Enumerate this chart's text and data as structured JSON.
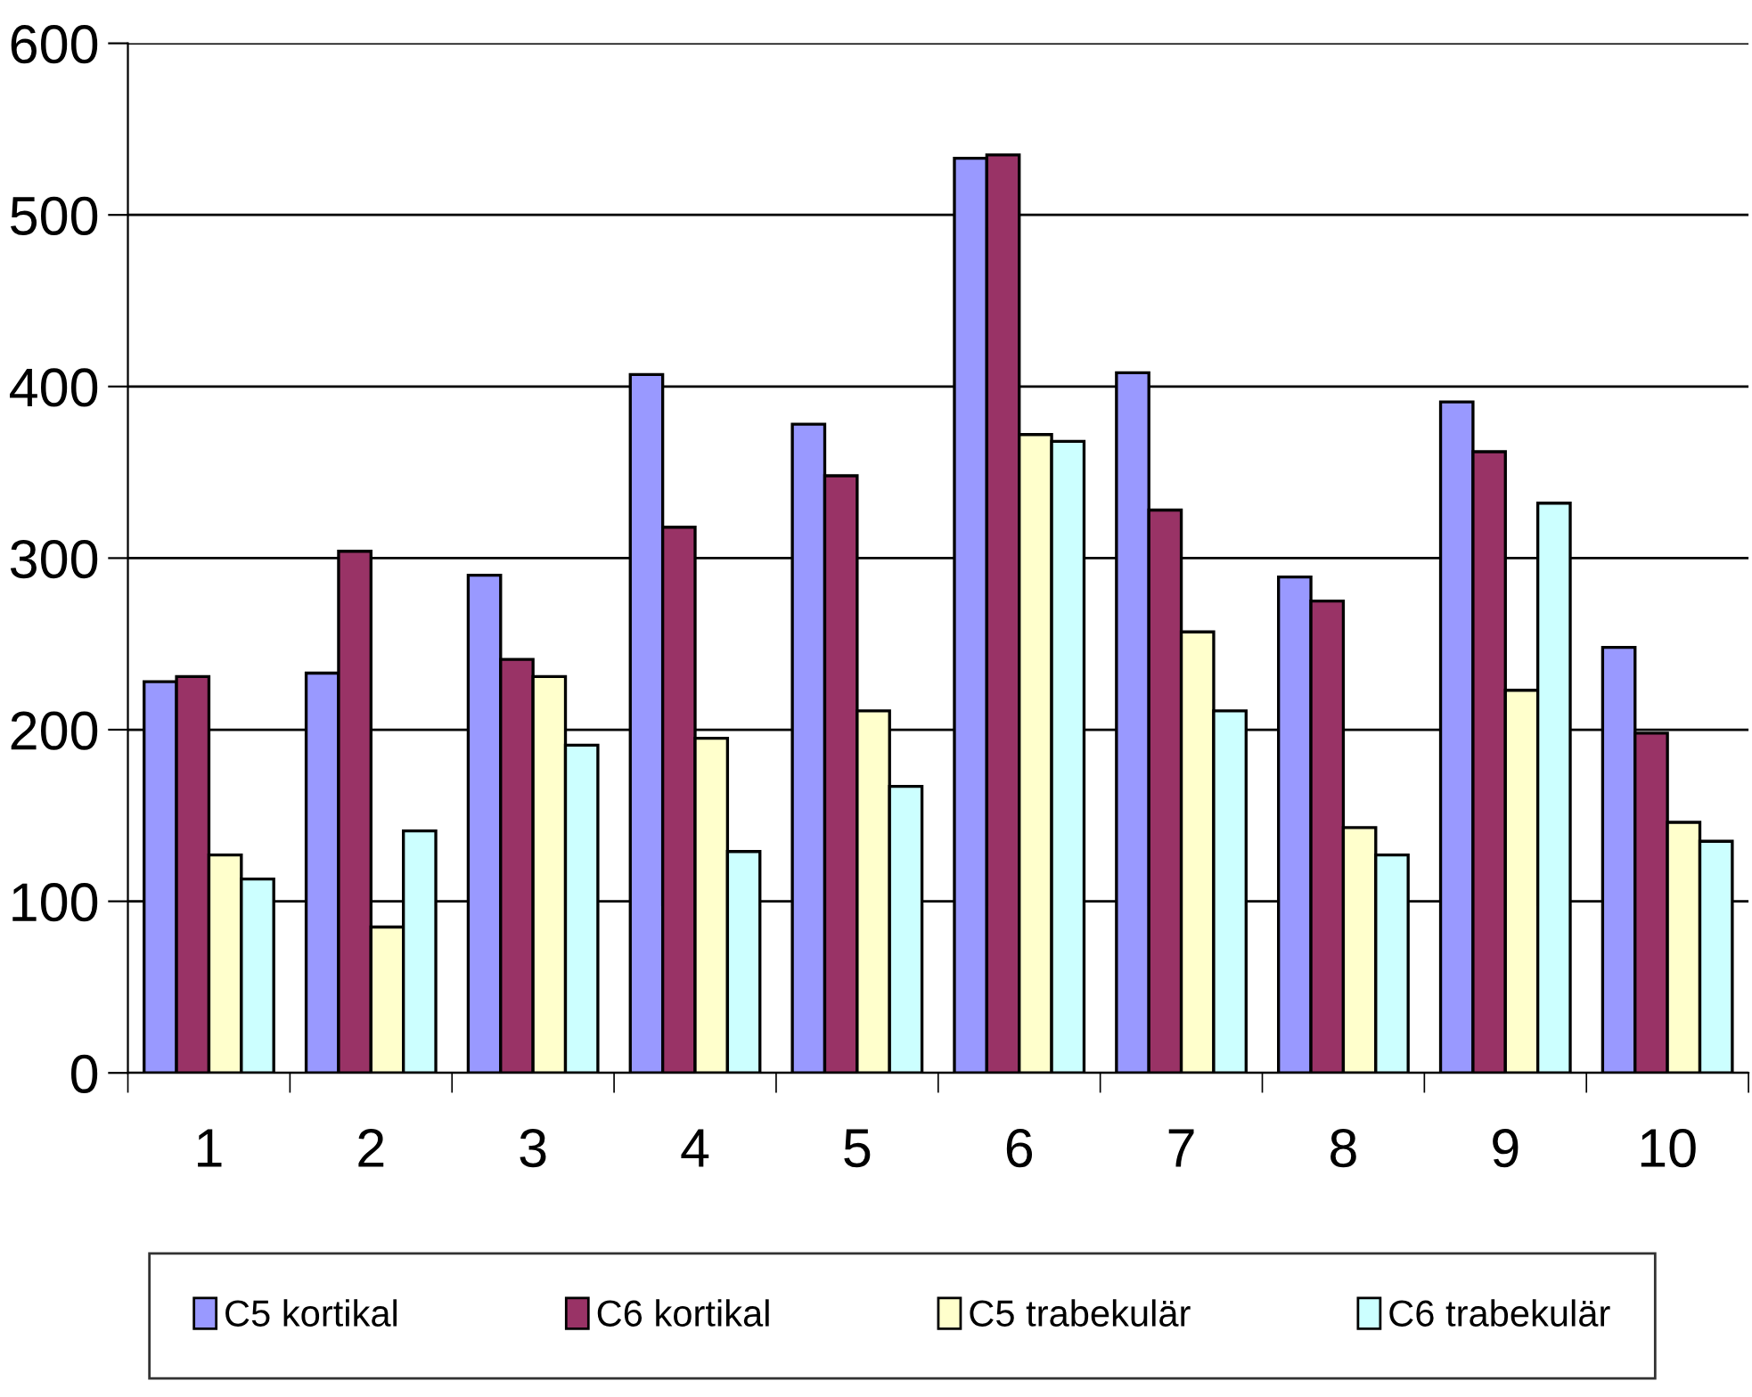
{
  "chart_data": {
    "type": "bar",
    "categories": [
      "1",
      "2",
      "3",
      "4",
      "5",
      "6",
      "7",
      "8",
      "9",
      "10"
    ],
    "series": [
      {
        "name": "C5 kortikal",
        "color": "#9999ff",
        "values": [
          228,
          233,
          290,
          407,
          378,
          533,
          408,
          289,
          391,
          248
        ]
      },
      {
        "name": "C6 kortikal",
        "color": "#993366",
        "values": [
          231,
          304,
          241,
          318,
          348,
          535,
          328,
          275,
          362,
          198
        ]
      },
      {
        "name": "C5 trabekulär",
        "color": "#ffffcc",
        "values": [
          127,
          85,
          231,
          195,
          211,
          372,
          257,
          143,
          223,
          146
        ]
      },
      {
        "name": "C6 trabekulär",
        "color": "#ccffff",
        "values": [
          113,
          141,
          191,
          129,
          167,
          368,
          211,
          127,
          332,
          135
        ]
      }
    ],
    "ylim": [
      0,
      600
    ],
    "yticks": [
      0,
      100,
      200,
      300,
      400,
      500,
      600
    ],
    "grid": "y",
    "legend": "bottom"
  }
}
